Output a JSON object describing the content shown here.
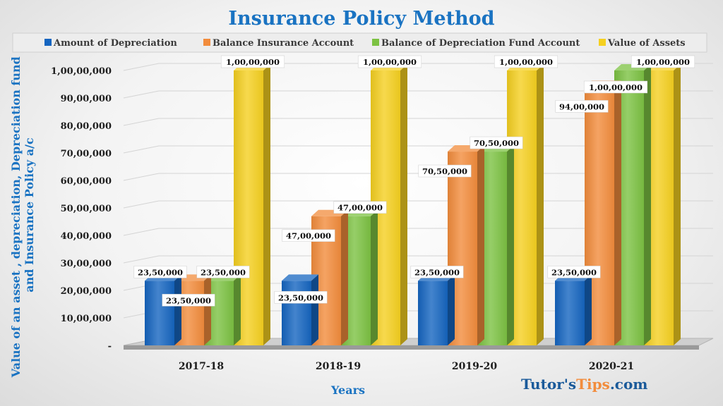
{
  "chart_data": {
    "type": "bar",
    "title": "Insurance Policy Method",
    "xlabel": "Years",
    "ylabel": "Value of an asset , depreciation, Depreciation  fund and Insurance Policy a/c",
    "ylim": [
      0,
      10000000
    ],
    "y_ticks": [
      "-",
      "10,00,000",
      "20,00,000",
      "30,00,000",
      "40,00,000",
      "50,00,000",
      "60,00,000",
      "70,00,000",
      "80,00,000",
      "90,00,000",
      "1,00,00,000"
    ],
    "categories": [
      "2017-18",
      "2018-19",
      "2019-20",
      "2020-21"
    ],
    "legend_position": "top",
    "grid": true,
    "series": [
      {
        "name": "Amount of Depreciation",
        "color": "#1565c0",
        "values": [
          2350000,
          2350000,
          2350000,
          2350000
        ],
        "labels": [
          "23,50,000",
          "23,50,000",
          "23,50,000",
          "23,50,000"
        ]
      },
      {
        "name": "Balance Insurance Account",
        "color": "#f28c3c",
        "values": [
          2350000,
          4700000,
          7050000,
          9400000
        ],
        "labels": [
          "23,50,000",
          "47,00,000",
          "70,50,000",
          "94,00,000"
        ]
      },
      {
        "name": "Balance of  Depreciation Fund Account",
        "color": "#7cc242",
        "values": [
          2350000,
          4700000,
          7050000,
          10000000
        ],
        "labels": [
          "23,50,000",
          "47,00,000",
          "70,50,000",
          "1,00,00,000"
        ]
      },
      {
        "name": "Value of Assets",
        "color": "#f5d020",
        "values": [
          10000000,
          10000000,
          10000000,
          10000000
        ],
        "labels": [
          "1,00,00,000",
          "1,00,00,000",
          "1,00,00,000",
          "1,00,00,000"
        ]
      }
    ]
  },
  "watermark": {
    "part1": "Tutor's",
    "part2": "Tips",
    "part3": ".com",
    "color1": "#1a5a9a",
    "color2": "#f28c3c"
  }
}
